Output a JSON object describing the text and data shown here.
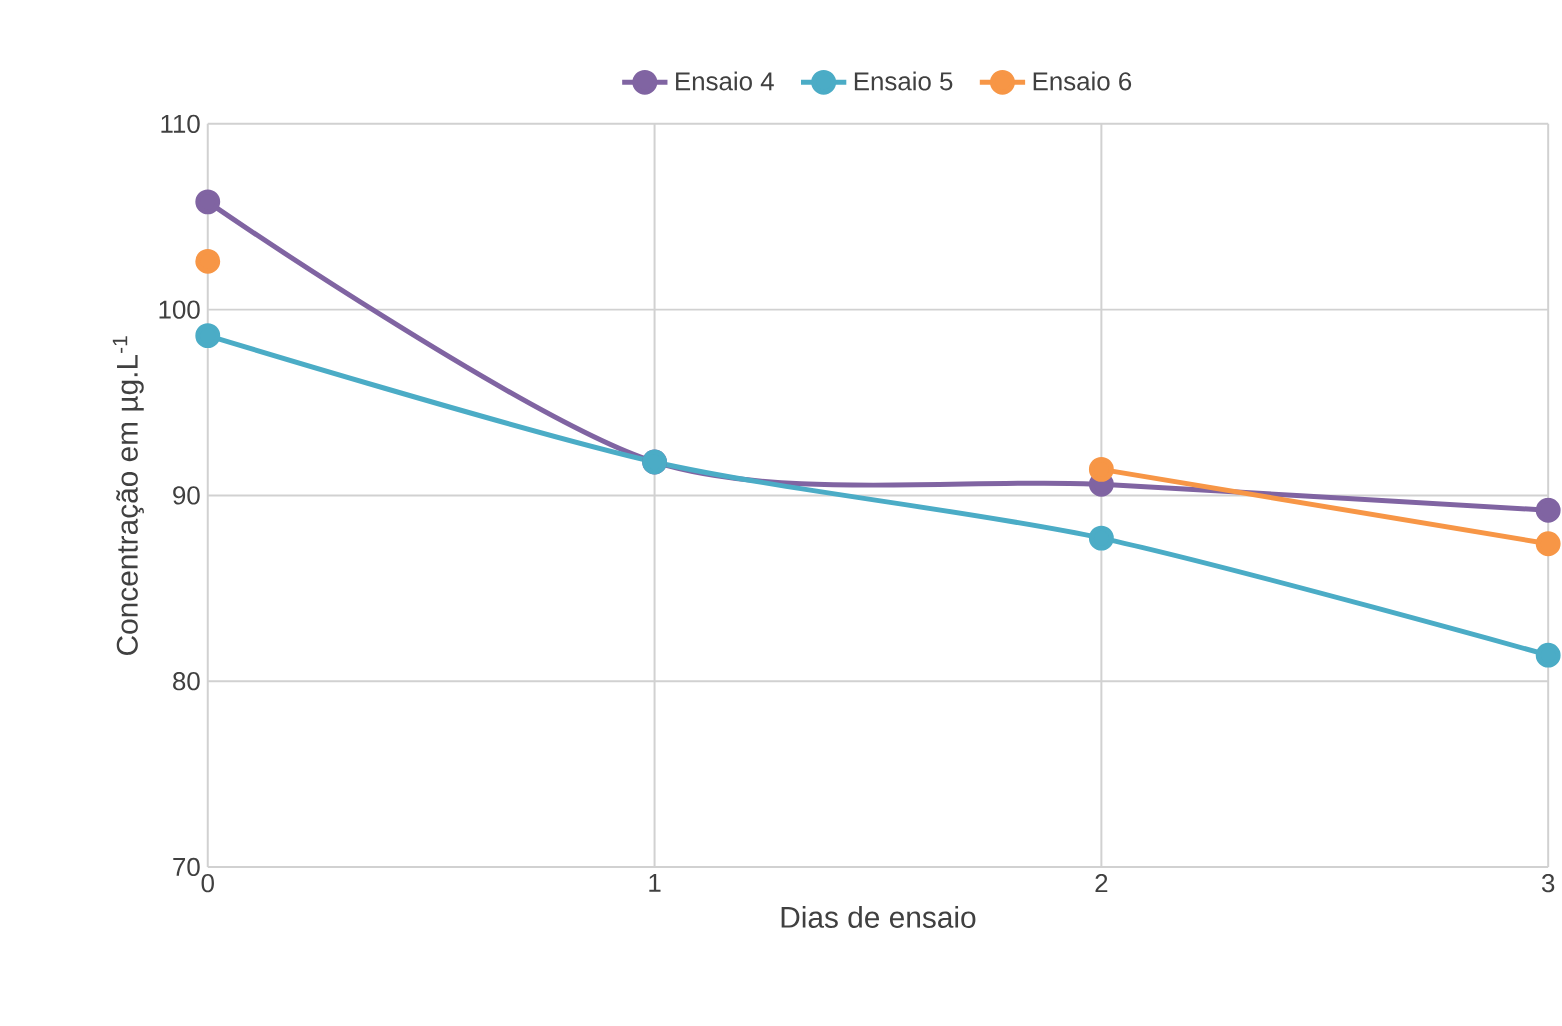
{
  "chart_data": {
    "type": "line",
    "xlabel": "Dias de ensaio",
    "ylabel": "Concentração em µg.L$^{-1}$",
    "x": [
      0,
      1,
      2,
      3
    ],
    "xlim": [
      0,
      3
    ],
    "xticks": [
      0,
      1,
      2,
      3
    ],
    "ylim": [
      70,
      110
    ],
    "yticks": [
      70,
      80,
      90,
      100,
      110
    ],
    "grid": true,
    "legend": "top",
    "marker": "circle",
    "line_style": "solid",
    "series": [
      {
        "name": "Ensaio 4",
        "color": "#8064a2",
        "values": [
          105.8,
          91.8,
          90.6,
          89.2
        ]
      },
      {
        "name": "Ensaio 5",
        "color": "#4bacc6",
        "values": [
          98.6,
          91.8,
          87.7,
          81.4
        ]
      },
      {
        "name": "Ensaio 6",
        "color": "#f79646",
        "values": [
          102.6,
          null,
          91.4,
          87.4
        ]
      }
    ]
  }
}
